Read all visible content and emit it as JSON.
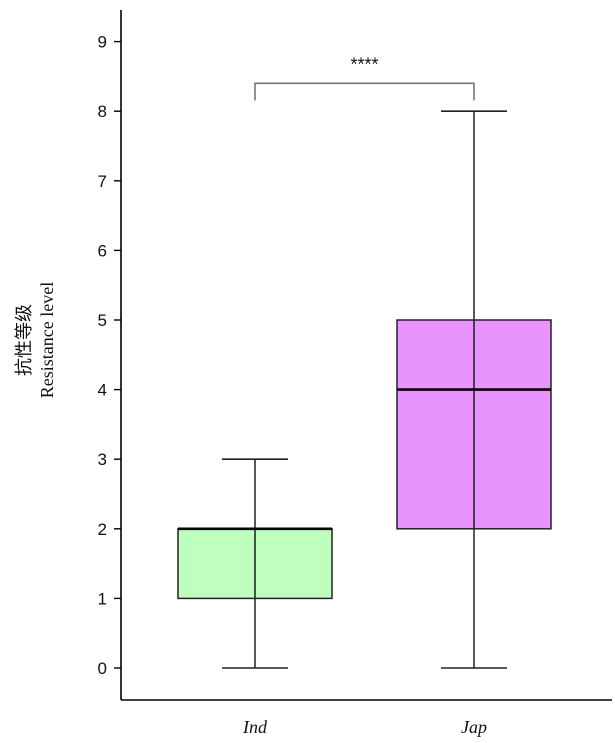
{
  "chart_data": {
    "type": "box",
    "title": "",
    "ylabel_cn": "抗性等级",
    "ylabel": "Resistance level",
    "xlabel": "",
    "categories": [
      "Ind",
      "Jap"
    ],
    "ylim": [
      -0.4,
      9.4
    ],
    "yticks": [
      0,
      1,
      2,
      3,
      4,
      5,
      6,
      7,
      8,
      9
    ],
    "grid": false,
    "boxes": [
      {
        "category": "Ind",
        "min": 0,
        "q1": 1,
        "median": 2,
        "q3": 2,
        "max": 3,
        "color": "#b3ffb3"
      },
      {
        "category": "Jap",
        "min": 0,
        "q1": 2,
        "median": 4,
        "q3": 5,
        "max": 8,
        "color": "#e580ff"
      }
    ],
    "significance": {
      "label": "****",
      "between": [
        "Ind",
        "Jap"
      ],
      "y": 8.4
    }
  }
}
